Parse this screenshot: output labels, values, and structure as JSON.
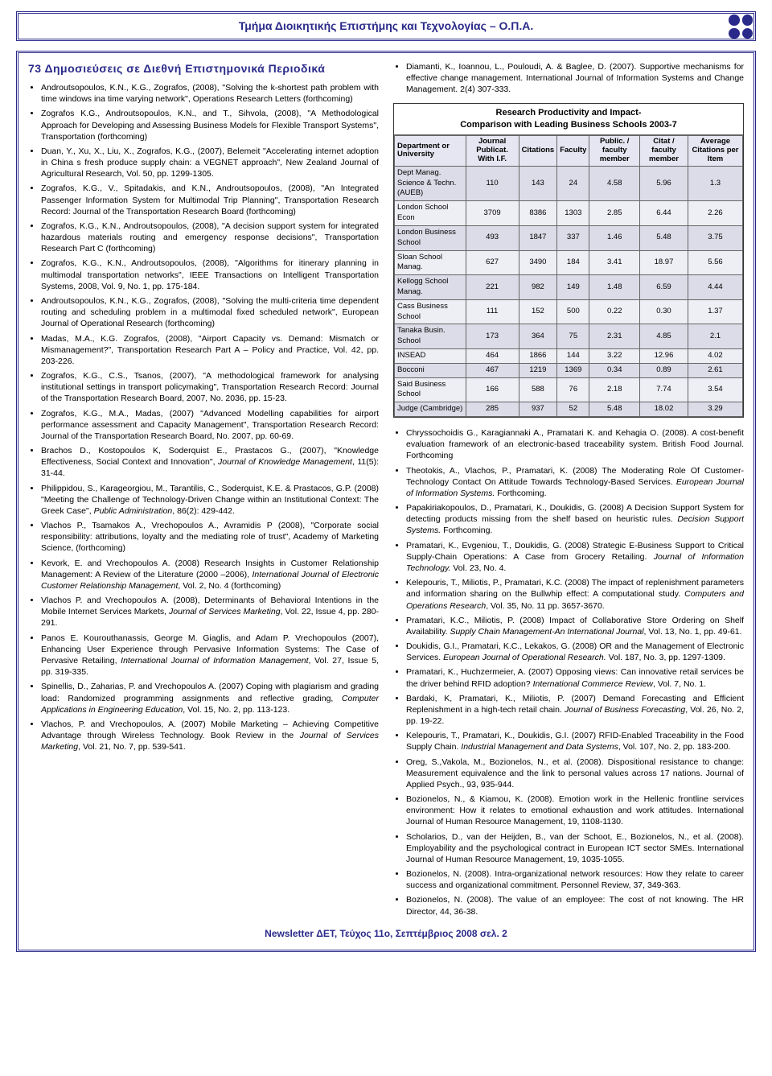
{
  "header": {
    "title": "Τμήμα Διοικητικής Επιστήμης και Τεχνολογίας – Ο.Π.Α."
  },
  "left": {
    "section_title": "73 Δημοσιεύσεις σε Διεθνή Επιστημονικά Περιοδικά",
    "items": [
      "Androutsopoulos, K.N., K.G., Zografos, (2008), \"Solving the k-shortest path problem with time windows ina time varying network\", Operations Research Letters (forthcoming)",
      "Zografos K.G., Androutsopoulos, K.N., and T., Sihvola, (2008), \"A Methodological Approach for Developing and Assessing Business Models for Flexible Transport Systems\", Transportation (forthcoming)",
      "Duan, Y., Xu, X., Liu, X., Zografos, K.G., (2007), Belemeit \"Accelerating internet adoption in China s fresh produce supply chain: a VEGNET approach\", New Zealand Journal of Agricultural Research, Vol. 50, pp. 1299-1305.",
      "Zografos, K.G., V., Spitadakis, and K.N., Androutsopoulos, (2008), \"An Integrated Passenger Information System for Multimodal Trip Planning\", Transportation Research Record: Journal of the Transportation Research Board (forthcoming)",
      "Zografos, K.G., K.N., Androutsopoulos, (2008), \"A decision support system for integrated hazardous materials routing and emergency response decisions\", Transportation Research Part C (forthcoming)",
      "Zografos, K.G., K.N., Androutsopoulos, (2008), \"Algorithms for itinerary planning in multimodal transportation networks\", IEEE Transactions on Intelligent Transportation Systems, 2008, Vol. 9, No. 1, pp. 175-184.",
      "Androutsopoulos, K.N., K.G., Zografos, (2008), \"Solving the multi-criteria time dependent routing and scheduling problem in a multimodal fixed scheduled network\", European Journal of Operational Research (forthcoming)",
      "Madas, M.A., K.G. Zografos, (2008), \"Airport Capacity vs. Demand: Mismatch or Mismanagement?\", Transportation Research Part A – Policy and Practice, Vol. 42, pp. 203-226.",
      "Zografos, K.G., C.S., Tsanos, (2007), \"A methodological framework for analysing institutional settings in transport policymaking\", Transportation Research Record: Journal of the Transportation Research Board, 2007, No. 2036, pp. 15-23.",
      "Zografos, K.G., M.A., Madas, (2007) \"Advanced Modelling capabilities for airport performance assessment and Capacity Management\", Transportation Research Record: Journal of the Transportation Research Board, No. 2007, pp. 60-69.",
      "Brachos D., Kostopoulos K, Soderquist E., Prastacos G., (2007), \"Knowledge Effectiveness, Social Context and Innovation\", <i>Journal of Knowledge Management</i>, 11(5): 31-44.",
      "Philippidou, S., Karageorgiou, M., Tarantilis, C., Soderquist, K.E. & Prastacos, G.P. (2008) \"Meeting the Challenge of Technology-Driven Change within an Institutional Context: The Greek Case\", <i>Public Administration</i>, 86(2): 429-442.",
      "Vlachos P., Tsamakos A., Vrechopoulos A., Avramidis P (2008), \"Corporate social responsibility: attributions, loyalty and the mediating role of trust\", Academy of Marketing Science, (forthcoming)",
      "Kevork, E. and Vrechopoulos A. (2008) Research Insights in Customer Relationship Management: A Review of the Literature (2000 –2006), <i>International Journal of Electronic Customer Relationship Management</i>, Vol. 2, No. 4 (forthcoming)",
      "Vlachos P. and Vrechopoulos A. (2008), Determinants of Behavioral Intentions in the Mobile Internet Services Markets, <i>Journal of Services Marketing</i>, Vol. 22, Issue 4, pp. 280-291.",
      "Panos E. Kourouthanassis, George M. Giaglis, and Adam P. Vrechopoulos (2007), Enhancing User Experience through Pervasive Information Systems: The Case of Pervasive Retailing, <i>International Journal of Information Management</i>, Vol. 27, Issue 5, pp. 319-335.",
      "Spinellis, D., Zaharias, P. and Vrechopoulos A. (2007) Coping with plagiarism and grading load: Randomized programming assignments and reflective grading, <i>Computer Applications in Engineering Education</i>, Vol. 15, No. 2, pp. 113-123.",
      "Vlachos, P. and Vrechopoulos, A. (2007) Mobile Marketing – Achieving Competitive Advantage through Wireless Technology. Book Review in the <i>Journal of Services Marketing</i>, Vol. 21, No. 7, pp. 539-541."
    ]
  },
  "right": {
    "top_item": "Diamanti, K., Ioannou, L., Pouloudi, A. & Baglee, D. (2007). Supportive mechanisms for effective change management. International Journal of Information Systems and Change Management. 2(4) 307-333.",
    "table": {
      "title_line1": "Research Productivity and Impact-",
      "title_line2": "Comparison with Leading Business Schools 2003-7",
      "headers": [
        "Department or University",
        "Journal Publicat. With I.F.",
        "Citations",
        "Faculty",
        "Public. / faculty member",
        "Citat / faculty member",
        "Average Citations per Item"
      ],
      "rows": [
        [
          "Dept Manag. Science & Techn. (AUEB)",
          "110",
          "143",
          "24",
          "4.58",
          "5.96",
          "1.3"
        ],
        [
          "London School Econ",
          "3709",
          "8386",
          "1303",
          "2.85",
          "6.44",
          "2.26"
        ],
        [
          "London Business School",
          "493",
          "1847",
          "337",
          "1.46",
          "5.48",
          "3.75"
        ],
        [
          "Sloan School Manag.",
          "627",
          "3490",
          "184",
          "3.41",
          "18.97",
          "5.56"
        ],
        [
          "Kellogg School Manag.",
          "221",
          "982",
          "149",
          "1.48",
          "6.59",
          "4.44"
        ],
        [
          "Cass Business School",
          "111",
          "152",
          "500",
          "0.22",
          "0.30",
          "1.37"
        ],
        [
          "Tanaka Busin. School",
          "173",
          "364",
          "75",
          "2.31",
          "4.85",
          "2.1"
        ],
        [
          "INSEAD",
          "464",
          "1866",
          "144",
          "3.22",
          "12.96",
          "4.02"
        ],
        [
          "Bocconi",
          "467",
          "1219",
          "1369",
          "0.34",
          "0.89",
          "2.61"
        ],
        [
          "Said Business School",
          "166",
          "588",
          "76",
          "2.18",
          "7.74",
          "3.54"
        ],
        [
          "Judge (Cambridge)",
          "285",
          "937",
          "52",
          "5.48",
          "18.02",
          "3.29"
        ]
      ]
    },
    "items": [
      "Chryssochoidis G., Karagiannaki A., Pramatari K. and Kehagia O. (2008). A cost-benefit evaluation framework of an electronic-based traceability system. British Food Journal. Forthcoming",
      "Theotokis, A., Vlachos, P., Pramatari, K. (2008) The Moderating Role Of Customer-Technology Contact On Attitude Towards Technology-Based Services. <i>European Journal of Information Systems.</i> Forthcoming.",
      "Papakiriakopoulos, D., Pramatari, K., Doukidis, G. (2008) A Decision Support System for detecting products missing from the shelf based on heuristic rules. <i>Decision Support Systems.</i> Forthcoming.",
      "Pramatari, K., Evgeniou, T., Doukidis, G. (2008) Strategic E-Business Support to Critical Supply-Chain Operations: A Case from Grocery Retailing. <i>Journal of Information Technology.</i> Vol. 23, No. 4.",
      "Kelepouris, T., Miliotis, P., Pramatari, K.C. (2008) The impact of replenishment parameters and information sharing on the Bullwhip effect: A computational study. <i>Computers and Operations Research</i>, Vol. 35, No. 11 pp. 3657-3670.",
      "Pramatari, K.C., Miliotis, P. (2008) Impact of Collaborative Store Ordering on Shelf Availability. <i>Supply Chain Management-An International Journal</i>, Vol. 13, No. 1, pp. 49-61.",
      "Doukidis, G.I., Pramatari, K.C., Lekakos, G. (2008) OR and the Management of Electronic Services. <i>European Journal of Operational Research.</i> Vol. 187, No. 3, pp. 1297-1309.",
      "Pramatari, K., Huchzermeier, A. (2007) Opposing views: Can innovative retail services be the driver behind RFID adoption? <i>International Commerce Review</i>, Vol. 7, No. 1.",
      "Bardaki, K, Pramatari, K., Miliotis, P. (2007) Demand Forecasting and Efficient Replenishment in a high-tech retail chain. <i>Journal of Business Forecasting</i>, Vol. 26, No. 2, pp. 19-22.",
      "Kelepouris, T., Pramatari, K., Doukidis, G.I. (2007) RFID-Enabled Traceability in the Food Supply Chain. <i>Industrial Management and Data Systems</i>, Vol. 107, No. 2, pp. 183-200.",
      "Oreg, S.,Vakola, M., Bozionelos, N., et al. (2008). Dispositional resistance to change: Measurement equivalence and the link to personal values across 17 nations. Journal of Applied Psych., 93, 935-944.",
      "Bozionelos, N., & Kiamou, K. (2008). Emotion work in the Hellenic frontline services environment: How it relates to emotional exhaustion and work attitudes. International Journal of Human Resource Management, 19, 1108-1130.",
      "Scholarios, D., van der Heijden, B., van der Schoot, E., Bozionelos, N., et al. (2008). Employability and the psychological contract in European ICT sector SMEs. International Journal of Human Resource Management, 19, 1035-1055.",
      "Bozionelos, N. (2008). Intra-organizational network resources: How they relate to career success and organizational commitment. Personnel Review, 37, 349-363.",
      "Bozionelos, N. (2008). The value of an employee: The cost of not knowing. The HR Director, 44, 36-38."
    ]
  },
  "footer": {
    "text": "Newsletter ΔΕΤ, Τεύχος 11ο, Σεπτέμβριος 2008     σελ. 2"
  }
}
